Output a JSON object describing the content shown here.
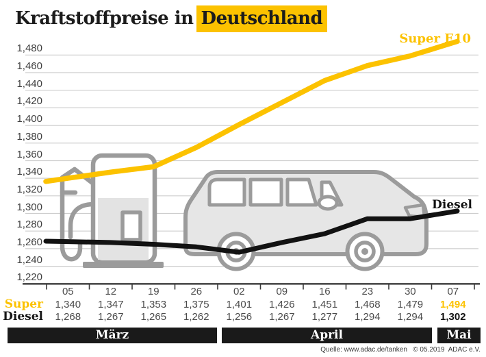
{
  "header": {
    "title_prefix": "Kraftstoffpreise in",
    "title_highlight": "Deutschland"
  },
  "chart_data": {
    "type": "line",
    "title": "Kraftstoffpreise in Deutschland",
    "grid": true,
    "legend_position": "inline-end-labels",
    "ylim": [
      1.22,
      1.48
    ],
    "y_ticks": [
      "1,480",
      "1,460",
      "1,440",
      "1,420",
      "1,400",
      "1,380",
      "1,360",
      "1,340",
      "1,320",
      "1,300",
      "1,280",
      "1,260",
      "1,240",
      "1,220"
    ],
    "x_tick_labels": [
      "05",
      "12",
      "19",
      "26",
      "02",
      "09",
      "16",
      "23",
      "30",
      "07"
    ],
    "months": [
      {
        "label": "März",
        "columns": 4
      },
      {
        "label": "April",
        "columns": 5
      },
      {
        "label": "Mai",
        "columns": 1
      }
    ],
    "series": [
      {
        "name": "Super E10",
        "color": "#FCC200",
        "values": [
          1.34,
          1.347,
          1.353,
          1.375,
          1.401,
          1.426,
          1.451,
          1.468,
          1.479,
          1.494
        ]
      },
      {
        "name": "Diesel",
        "color": "#121212",
        "values": [
          1.268,
          1.267,
          1.265,
          1.262,
          1.256,
          1.267,
          1.277,
          1.294,
          1.294,
          1.302
        ]
      }
    ]
  },
  "table": {
    "rows": [
      {
        "label": "Super",
        "values": [
          "1,340",
          "1,347",
          "1,353",
          "1,375",
          "1,401",
          "1,426",
          "1,451",
          "1,468",
          "1,479",
          "1,494"
        ]
      },
      {
        "label": "Diesel",
        "values": [
          "1,268",
          "1,267",
          "1,265",
          "1,262",
          "1,256",
          "1,267",
          "1,277",
          "1,294",
          "1,294",
          "1,302"
        ]
      }
    ]
  },
  "icons": {
    "pump": "fuel-pump-icon",
    "car": "car-icon"
  },
  "footer": {
    "source": "Quelle: www.adac.de/tanken   © 05.2019  ADAC e.V."
  }
}
